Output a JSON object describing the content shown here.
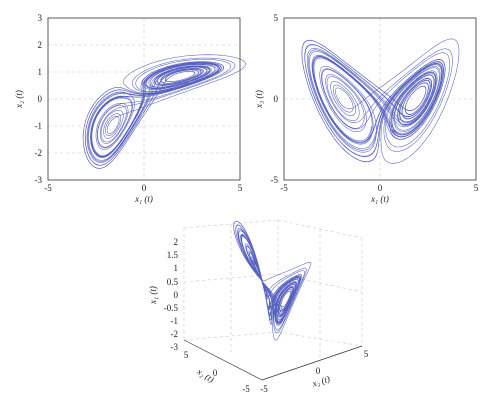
{
  "chart_data": [
    {
      "type": "line",
      "kind": "phase-portrait-2d",
      "xlabel": "x₁ (t)",
      "ylabel": "x₂ (t)",
      "xlim": [
        -5,
        5
      ],
      "ylim": [
        -3,
        3
      ],
      "xticks": [
        "-5",
        "0",
        "5"
      ],
      "yticks": [
        "3",
        "2",
        "1",
        "0",
        "-1",
        "-2",
        "-3"
      ],
      "grid": true,
      "series_color": "#3a45b5"
    },
    {
      "type": "line",
      "kind": "phase-portrait-2d",
      "xlabel": "x₁ (t)",
      "ylabel": "x₃ (t)",
      "xlim": [
        -5,
        5
      ],
      "ylim": [
        -5,
        5
      ],
      "xticks": [
        "-5",
        "0",
        "5"
      ],
      "yticks": [
        "5",
        "0",
        "-5"
      ],
      "grid": true,
      "series_color": "#3a45b5"
    },
    {
      "type": "line",
      "kind": "phase-portrait-3d",
      "xlabel": "x₃ (t)",
      "ylabel": "x₂ (t)",
      "zlabel": "x₁ (t)",
      "xlim": [
        -5,
        5
      ],
      "ylim": [
        -5,
        5
      ],
      "zlim": [
        -3,
        2.5
      ],
      "xticks": [
        "-5",
        "0",
        "5"
      ],
      "yticks": [
        "-5",
        "0",
        "5"
      ],
      "zticks": [
        "2",
        "1.5",
        "1",
        "0.5",
        "0",
        "-0.5",
        "-1",
        "-2",
        "-3"
      ],
      "grid": true,
      "series_color": "#3a45b5"
    }
  ]
}
